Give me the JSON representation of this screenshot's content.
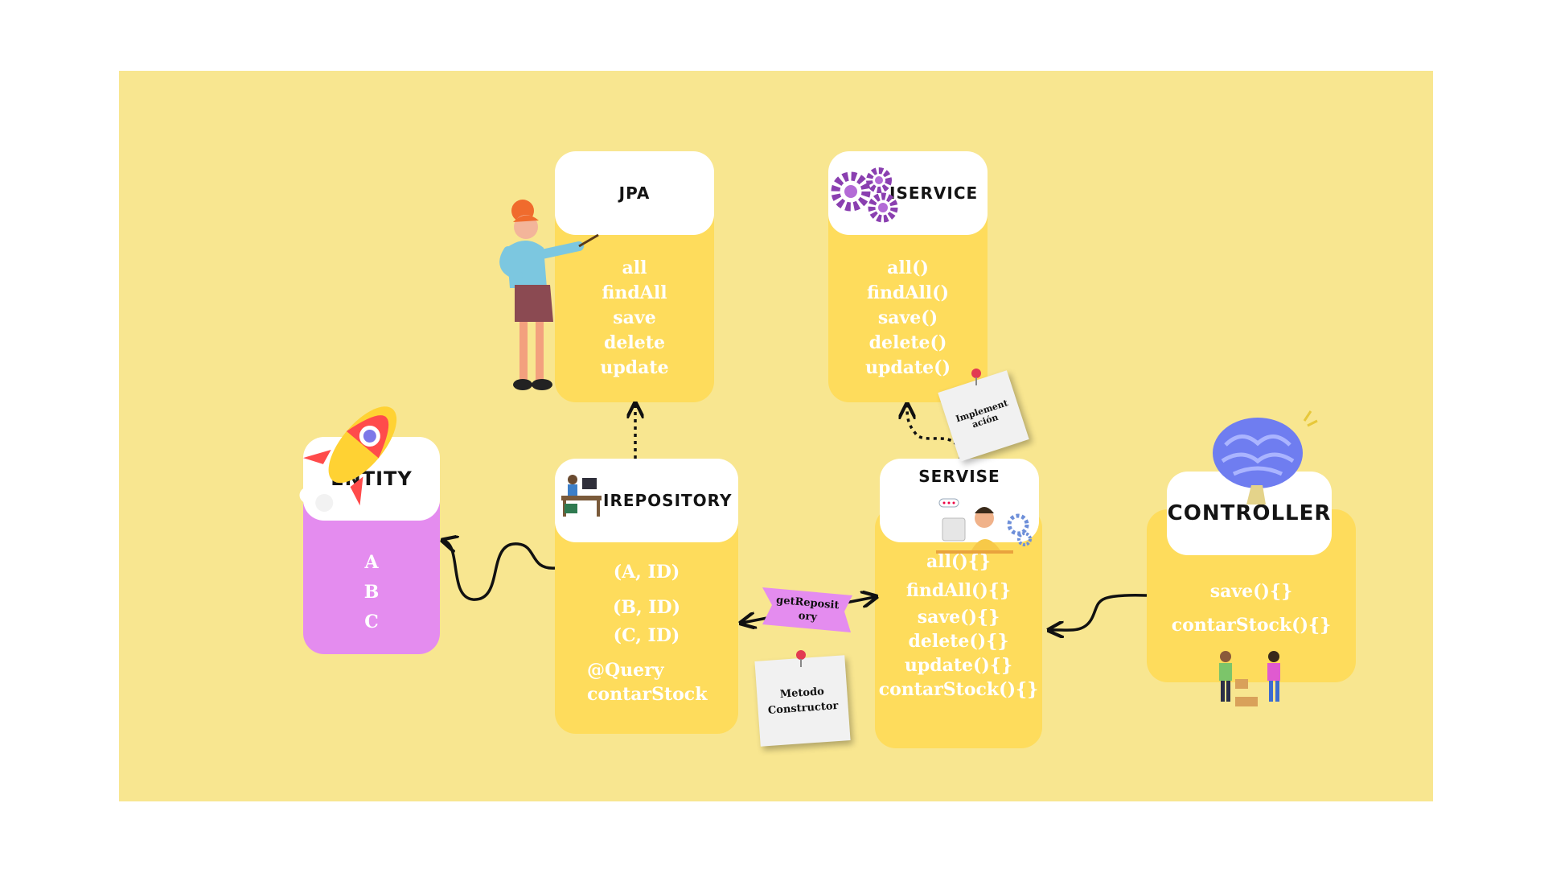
{
  "cards": {
    "jpa": {
      "title": "JPA",
      "lines": [
        "all",
        "findAll",
        "save",
        "delete",
        "update"
      ]
    },
    "iservice": {
      "title": "ISERVICE",
      "lines": [
        "all()",
        "findAll()",
        "save()",
        "delete()",
        "update()"
      ]
    },
    "entity": {
      "title": "ENTITY",
      "lines": [
        "A",
        "B",
        "C"
      ]
    },
    "irepository": {
      "title": "IREPOSITORY",
      "lines": [
        "(A, ID)",
        "(B, ID)",
        "(C, ID)",
        "@Query",
        "contarStock"
      ]
    },
    "servise": {
      "title": "SERVISE",
      "lines": [
        "all(){}",
        "findAll(){}",
        "save(){}",
        "delete(){}",
        "update(){}",
        "contarStock(){}"
      ]
    },
    "controller": {
      "title": "CONTROLLER",
      "lines": [
        "save(){}",
        "contarStock(){}"
      ]
    }
  },
  "notes": {
    "implementacion": [
      "Implement",
      "ación"
    ],
    "metodo": [
      "Metodo",
      "Constructor"
    ],
    "ribbon": [
      "getReposit",
      "ory"
    ]
  },
  "colors": {
    "background": "#f8e690",
    "card_yellow": "#fedc5c",
    "card_pink": "#e48cef",
    "ribbon": "#e48cef"
  },
  "icons": [
    "rocket-icon",
    "teacher-figure",
    "gears-icon",
    "computer-worker-icon",
    "support-agent-icon",
    "brain-icon",
    "people-handoff-icon"
  ]
}
